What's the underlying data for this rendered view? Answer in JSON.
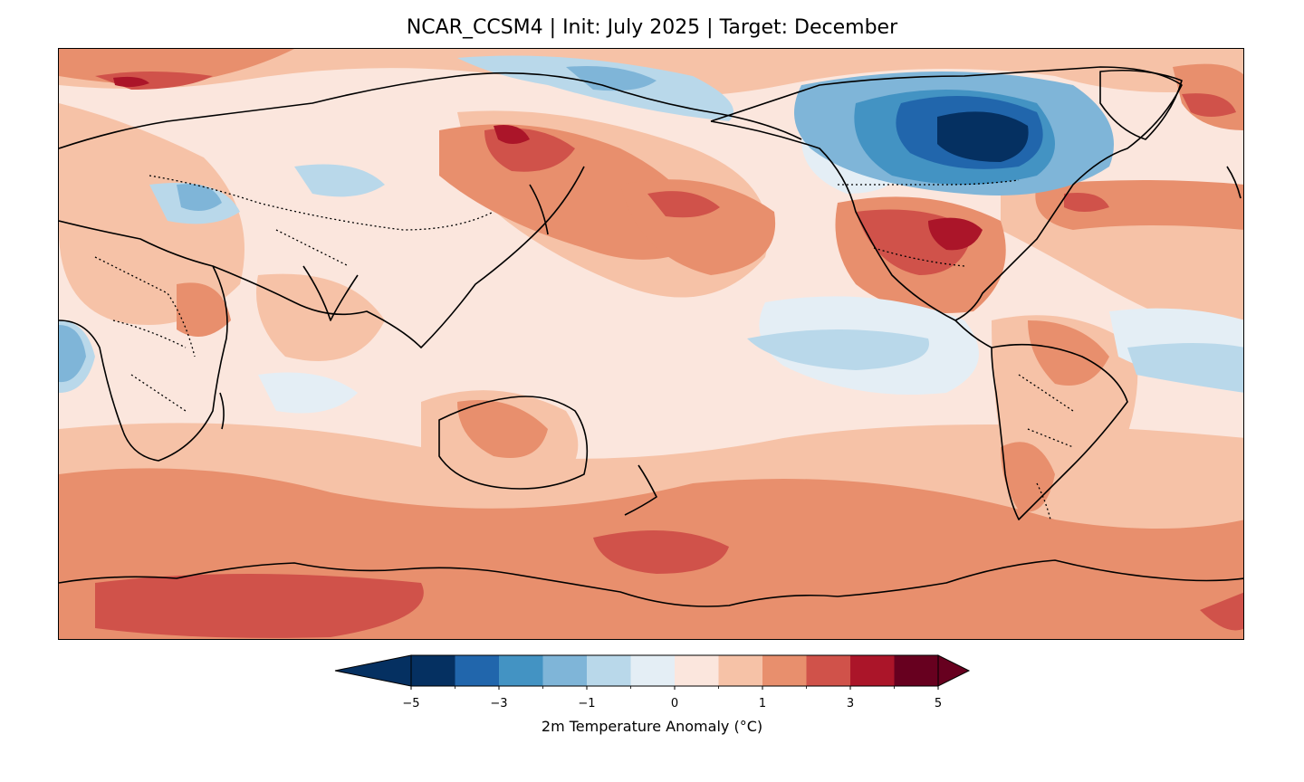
{
  "title": "NCAR_CCSM4 | Init: July 2025 | Target: December",
  "colorbar": {
    "label": "2m Temperature Anomaly (°C)",
    "ticks": [
      "−5",
      "−3",
      "−1",
      "0",
      "1",
      "3",
      "5"
    ],
    "levels": [
      -5,
      -4,
      -3,
      -2,
      -1,
      -0.5,
      0,
      0.5,
      1,
      2,
      3,
      4,
      5
    ],
    "colors": [
      "#053061",
      "#2166ac",
      "#4393c3",
      "#7fb5d8",
      "#b9d8ea",
      "#e4eef5",
      "#fbe6dd",
      "#f6c2a7",
      "#e88f6d",
      "#d0524a",
      "#ab1529",
      "#67001f"
    ],
    "extend": "both"
  },
  "map": {
    "projection": "PlateCarree",
    "central_longitude": 180,
    "lon_range": [
      0,
      360
    ],
    "lat_range": [
      -90,
      90
    ],
    "features": [
      "coastlines",
      "country borders (dotted)"
    ]
  }
}
